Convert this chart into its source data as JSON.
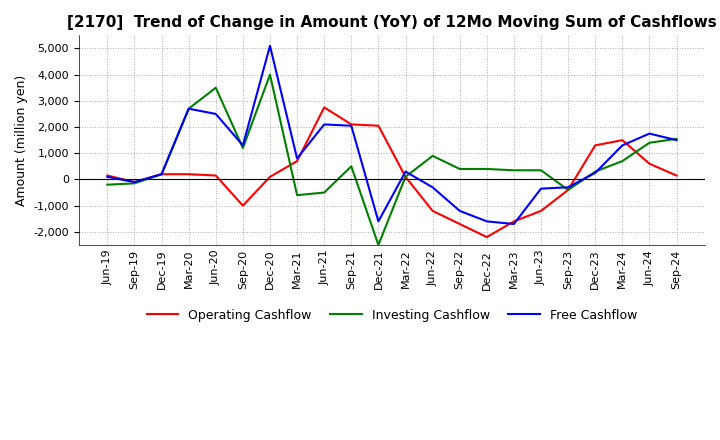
{
  "title": "[2170]  Trend of Change in Amount (YoY) of 12Mo Moving Sum of Cashflows",
  "ylabel": "Amount (million yen)",
  "ylim": [
    -2500,
    5500
  ],
  "yticks": [
    -2000,
    -1000,
    0,
    1000,
    2000,
    3000,
    4000,
    5000
  ],
  "x_labels": [
    "Jun-19",
    "Sep-19",
    "Dec-19",
    "Mar-20",
    "Jun-20",
    "Sep-20",
    "Dec-20",
    "Mar-21",
    "Jun-21",
    "Sep-21",
    "Dec-21",
    "Mar-22",
    "Jun-22",
    "Sep-22",
    "Dec-22",
    "Mar-23",
    "Jun-23",
    "Sep-23",
    "Dec-23",
    "Mar-24",
    "Jun-24",
    "Sep-24"
  ],
  "operating": [
    150,
    -100,
    200,
    200,
    150,
    -1000,
    100,
    700,
    2750,
    2100,
    2050,
    100,
    -1200,
    -1700,
    -2200,
    -1600,
    -1200,
    -400,
    1300,
    1500,
    600,
    150
  ],
  "investing": [
    -200,
    -150,
    200,
    2700,
    3500,
    1200,
    4000,
    -600,
    -500,
    500,
    -2500,
    100,
    900,
    400,
    400,
    350,
    350,
    -400,
    300,
    700,
    1400,
    1550
  ],
  "free": [
    100,
    -100,
    200,
    2700,
    2500,
    1300,
    5100,
    800,
    2100,
    2050,
    -1600,
    300,
    -300,
    -1200,
    -1600,
    -1700,
    -350,
    -300,
    250,
    1300,
    1750,
    1500
  ],
  "operating_color": "#ff0000",
  "investing_color": "#008000",
  "free_color": "#0000ff",
  "bg_color": "#ffffff",
  "grid_color": "#aaaaaa",
  "title_fontsize": 11,
  "label_fontsize": 9,
  "tick_fontsize": 8
}
